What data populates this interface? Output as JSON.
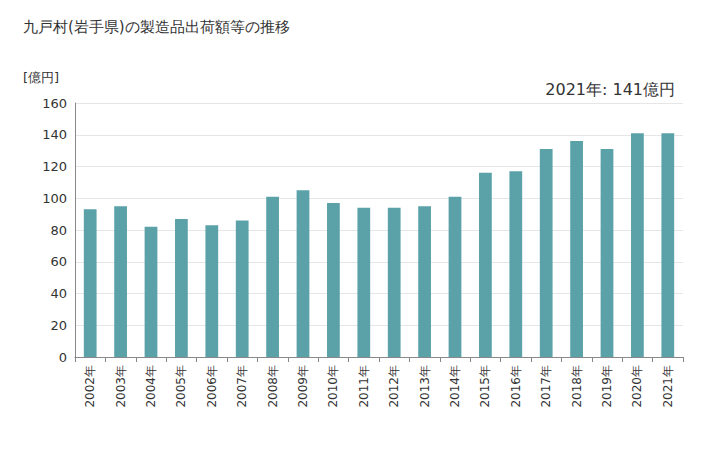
{
  "chart_data": {
    "type": "bar",
    "title": "九戸村(岩手県)の製造品出荷額等の推移",
    "ylabel": "[億円]",
    "annotation": "2021年: 141億円",
    "categories": [
      "2002年",
      "2003年",
      "2004年",
      "2005年",
      "2006年",
      "2007年",
      "2008年",
      "2009年",
      "2010年",
      "2011年",
      "2012年",
      "2013年",
      "2014年",
      "2015年",
      "2016年",
      "2017年",
      "2018年",
      "2019年",
      "2020年",
      "2021年"
    ],
    "values": [
      93,
      95,
      82,
      87,
      83,
      86,
      101,
      105,
      97,
      94,
      94,
      95,
      101,
      116,
      117,
      131,
      136,
      131,
      141,
      141
    ],
    "color": "#5aa2a8",
    "ylim": [
      0,
      160
    ],
    "yticks": [
      0,
      20,
      40,
      60,
      80,
      100,
      120,
      140,
      160
    ],
    "grid": true
  }
}
